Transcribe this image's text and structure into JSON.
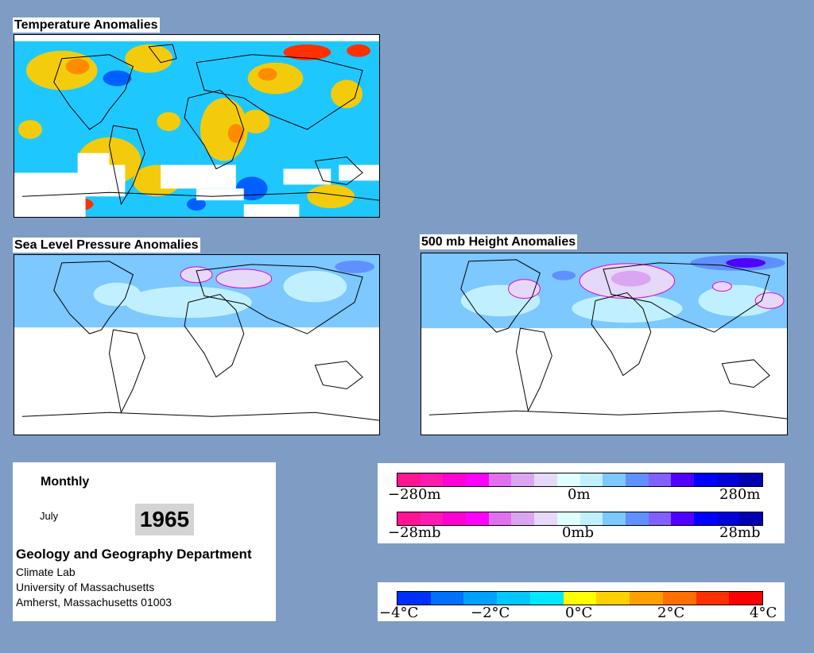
{
  "panels": {
    "temperature": {
      "title": "Temperature Anomalies"
    },
    "slp": {
      "title": "Sea Level Pressure Anomalies"
    },
    "height500": {
      "title": "500 mb Height Anomalies"
    }
  },
  "info": {
    "frequency": "Monthly",
    "month": "July",
    "year": "1965",
    "department": "Geology and Geography Department",
    "lab": "Climate Lab",
    "university": "University of Massachusetts",
    "address": "Amherst, Massachusetts 01003"
  },
  "legends": {
    "height": {
      "labels": [
        "−280m",
        "0m",
        "280m"
      ],
      "colors": [
        "#ff1493",
        "#ff1ab0",
        "#ff00d4",
        "#ff00ff",
        "#e070f0",
        "#dba6f0",
        "#e6d8f8",
        "#e0ffff",
        "#c0f0ff",
        "#7cc8ff",
        "#6090ff",
        "#8060ff",
        "#5000ff",
        "#0000ff",
        "#0000d8",
        "#0000b0"
      ]
    },
    "pressure": {
      "labels": [
        "−28mb",
        "0mb",
        "28mb"
      ],
      "colors": [
        "#ff1493",
        "#ff1ab0",
        "#ff00d4",
        "#ff00ff",
        "#e070f0",
        "#dba6f0",
        "#e6d8f8",
        "#e0ffff",
        "#c0f0ff",
        "#7cc8ff",
        "#6090ff",
        "#8060ff",
        "#5000ff",
        "#0000ff",
        "#0000d8",
        "#0000b0"
      ]
    },
    "temperature": {
      "labels": [
        "−4°C",
        "−2°C",
        "0°C",
        "2°C",
        "4°C"
      ],
      "colors": [
        "#0030ff",
        "#0070ff",
        "#00a0ff",
        "#00c8ff",
        "#00e8ff",
        "#ffff00",
        "#ffd000",
        "#ffa000",
        "#ff7000",
        "#ff3000",
        "#ff0000"
      ]
    }
  }
}
